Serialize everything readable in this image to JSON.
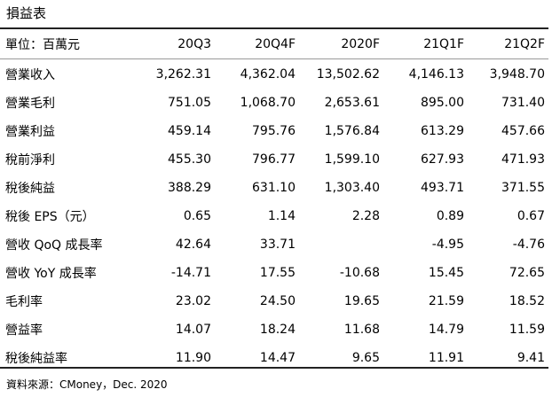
{
  "title": "損益表",
  "table": {
    "unit_label": "單位：百萬元",
    "columns": [
      "20Q3",
      "20Q4F",
      "2020F",
      "21Q1F",
      "21Q2F"
    ],
    "rows": [
      {
        "label": "營業收入",
        "values": [
          "3,262.31",
          "4,362.04",
          "13,502.62",
          "4,146.13",
          "3,948.70"
        ]
      },
      {
        "label": "營業毛利",
        "values": [
          "751.05",
          "1,068.70",
          "2,653.61",
          "895.00",
          "731.40"
        ]
      },
      {
        "label": "營業利益",
        "values": [
          "459.14",
          "795.76",
          "1,576.84",
          "613.29",
          "457.66"
        ]
      },
      {
        "label": "稅前淨利",
        "values": [
          "455.30",
          "796.77",
          "1,599.10",
          "627.93",
          "471.93"
        ]
      },
      {
        "label": "稅後純益",
        "values": [
          "388.29",
          "631.10",
          "1,303.40",
          "493.71",
          "371.55"
        ]
      },
      {
        "label": "稅後 EPS（元）",
        "values": [
          "0.65",
          "1.14",
          "2.28",
          "0.89",
          "0.67"
        ]
      },
      {
        "label": "營收 QoQ 成長率",
        "values": [
          "42.64",
          "33.71",
          "",
          "-4.95",
          "-4.76"
        ]
      },
      {
        "label": "營收 YoY 成長率",
        "values": [
          "-14.71",
          "17.55",
          "-10.68",
          "15.45",
          "72.65"
        ]
      },
      {
        "label": "毛利率",
        "values": [
          "23.02",
          "24.50",
          "19.65",
          "21.59",
          "18.52"
        ]
      },
      {
        "label": "營益率",
        "values": [
          "14.07",
          "18.24",
          "11.68",
          "14.79",
          "11.59"
        ]
      },
      {
        "label": "稅後純益率",
        "values": [
          "11.90",
          "14.47",
          "9.65",
          "11.91",
          "9.41"
        ]
      }
    ]
  },
  "footnote": "資料來源：CMoney，Dec. 2020"
}
